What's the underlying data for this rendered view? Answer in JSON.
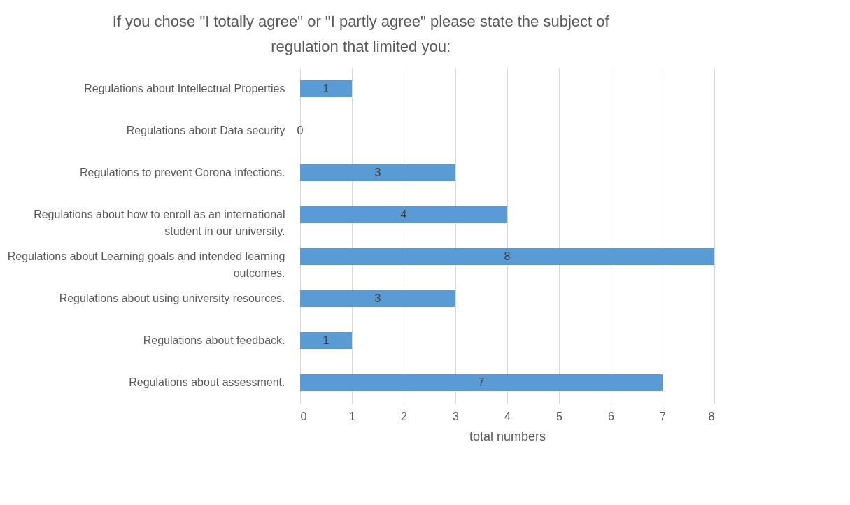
{
  "chart_data": {
    "type": "bar",
    "orientation": "horizontal",
    "title": "If you chose \"I totally agree\" or \"I partly agree\" please state the subject of regulation that limited you:",
    "xlabel": "total numbers",
    "categories": [
      "Regulations about Intellectual Properties",
      "Regulations about Data security",
      "Regulations to prevent Corona infections.",
      "Regulations about how to enroll as an international student in our university.",
      "Regulations about Learning goals and intended learning outcomes.",
      "Regulations about using university resources.",
      "Regulations about feedback.",
      "Regulations about assessment."
    ],
    "values": [
      1,
      0,
      3,
      4,
      8,
      3,
      1,
      7
    ],
    "color": "#5b9bd5",
    "xlim": [
      0,
      8
    ],
    "xticks": [
      0,
      1,
      2,
      3,
      4,
      5,
      6,
      7,
      8
    ],
    "grid": "x",
    "data_labels": true
  }
}
